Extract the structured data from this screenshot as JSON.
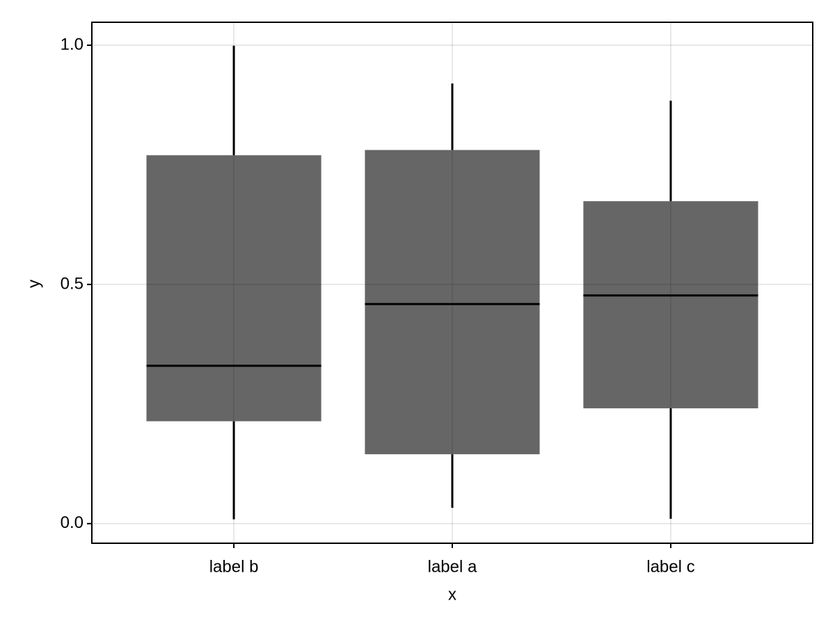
{
  "chart_data": {
    "type": "box",
    "x_label": "x",
    "y_label": "y",
    "categories": [
      "label b",
      "label a",
      "label c"
    ],
    "min": [
      0.009,
      0.033,
      0.01
    ],
    "q1": [
      0.214,
      0.145,
      0.241
    ],
    "median": [
      0.33,
      0.459,
      0.477
    ],
    "q3": [
      0.77,
      0.781,
      0.674
    ],
    "max": [
      0.999,
      0.92,
      0.884
    ],
    "color": "#666666",
    "ylim": [
      -0.041,
      1.048
    ],
    "yticks": [
      {
        "value": 0,
        "label": "0.0"
      },
      0.5,
      {
        "value": 1,
        "label": "1.0"
      }
    ],
    "grid": true
  }
}
